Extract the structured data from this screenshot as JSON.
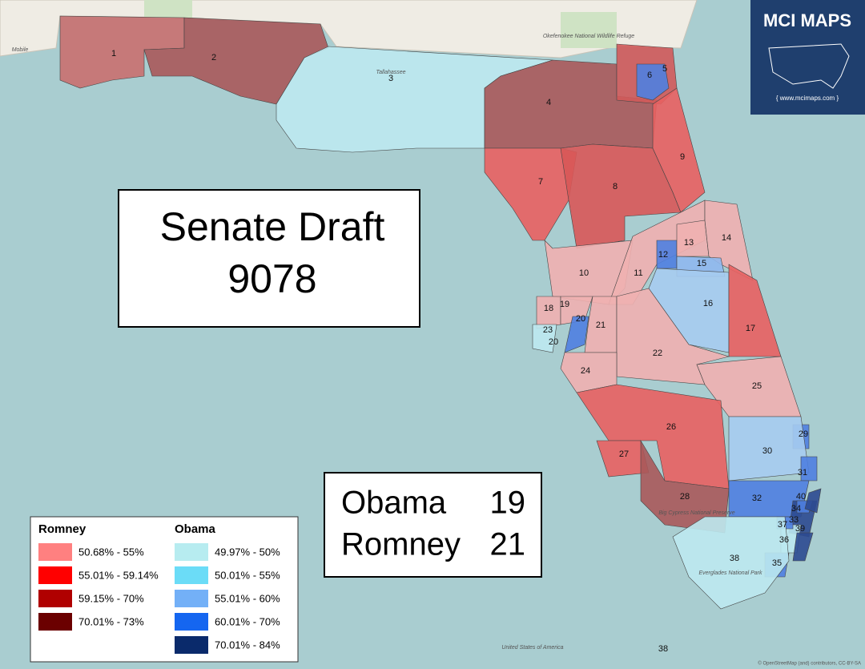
{
  "title": {
    "line1": "Senate Draft",
    "line2": "9078"
  },
  "results": [
    {
      "party": "Obama",
      "seats": "19"
    },
    {
      "party": "Romney",
      "seats": "21"
    }
  ],
  "logo": {
    "title": "MCI MAPS",
    "url": "{ www.mcimaps.com }"
  },
  "legend": {
    "groups": [
      {
        "title": "Romney",
        "items": [
          {
            "label": "50.68% - 55%",
            "color": "#ff8080"
          },
          {
            "label": "55.01% - 59.14%",
            "color": "#ff0000"
          },
          {
            "label": "59.15% - 70%",
            "color": "#b00000"
          },
          {
            "label": "70.01% - 73%",
            "color": "#6b0000"
          }
        ]
      },
      {
        "title": "Obama",
        "items": [
          {
            "label": "49.97% - 50%",
            "color": "#b7ecf0"
          },
          {
            "label": "50.01% - 55%",
            "color": "#6bdcf7"
          },
          {
            "label": "55.01% - 60%",
            "color": "#73b0f7"
          },
          {
            "label": "60.01% - 70%",
            "color": "#1566f0"
          },
          {
            "label": "70.01% - 84%",
            "color": "#0a2a6b"
          }
        ]
      }
    ]
  },
  "districts": [
    {
      "label": "1",
      "color": "#c9706f"
    },
    {
      "label": "2",
      "color": "#a9595a"
    },
    {
      "label": "3",
      "color": "#bde9f0"
    },
    {
      "label": "4",
      "color": "#a9595a"
    },
    {
      "label": "5",
      "color": "#d05a5a"
    },
    {
      "label": "6",
      "color": "#4f7fe0"
    },
    {
      "label": "7",
      "color": "#e86060"
    },
    {
      "label": "8",
      "color": "#d85858"
    },
    {
      "label": "9",
      "color": "#e86060"
    },
    {
      "label": "10",
      "color": "#efb0b0"
    },
    {
      "label": "11",
      "color": "#efb0b0"
    },
    {
      "label": "12",
      "color": "#4f7fe0"
    },
    {
      "label": "13",
      "color": "#efb0b0"
    },
    {
      "label": "14",
      "color": "#efb0b0"
    },
    {
      "label": "15",
      "color": "#8fb8ee"
    },
    {
      "label": "16",
      "color": "#a6ccf0"
    },
    {
      "label": "17",
      "color": "#e86060"
    },
    {
      "label": "18",
      "color": "#efb0b0"
    },
    {
      "label": "19",
      "color": "#efb0b0"
    },
    {
      "label": "20",
      "color": "#4f7fe0"
    },
    {
      "label": "21",
      "color": "#efb0b0"
    },
    {
      "label": "22",
      "color": "#efb0b0"
    },
    {
      "label": "23",
      "color": "#bde9f0"
    },
    {
      "label": "24",
      "color": "#efb0b0"
    },
    {
      "label": "25",
      "color": "#efb0b0"
    },
    {
      "label": "26",
      "color": "#e86060"
    },
    {
      "label": "27",
      "color": "#e86060"
    },
    {
      "label": "28",
      "color": "#a9595a"
    },
    {
      "label": "29",
      "color": "#4f7fe0"
    },
    {
      "label": "30",
      "color": "#a6ccf0"
    },
    {
      "label": "31",
      "color": "#4f7fe0"
    },
    {
      "label": "32",
      "color": "#4f7fe0"
    },
    {
      "label": "33",
      "color": "#2c4a90"
    },
    {
      "label": "34",
      "color": "#4f7fe0"
    },
    {
      "label": "35",
      "color": "#4f7fe0"
    },
    {
      "label": "36",
      "color": "#bde9f0"
    },
    {
      "label": "37",
      "color": "#4f7fe0"
    },
    {
      "label": "38",
      "color": "#bde9f0"
    },
    {
      "label": "39",
      "color": "#2c4a90"
    },
    {
      "label": "40",
      "color": "#2c4a90"
    }
  ],
  "extra_labels": [
    "38",
    "20"
  ],
  "places": [
    "Mobile",
    "Tallahassee",
    "Okefenokee National Wildlife Refuge",
    "Big Cypress National Preserve",
    "Everglades National Park",
    "United States of America"
  ],
  "attribution": "© OpenStreetMap (and) contributors, CC-BY-SA"
}
